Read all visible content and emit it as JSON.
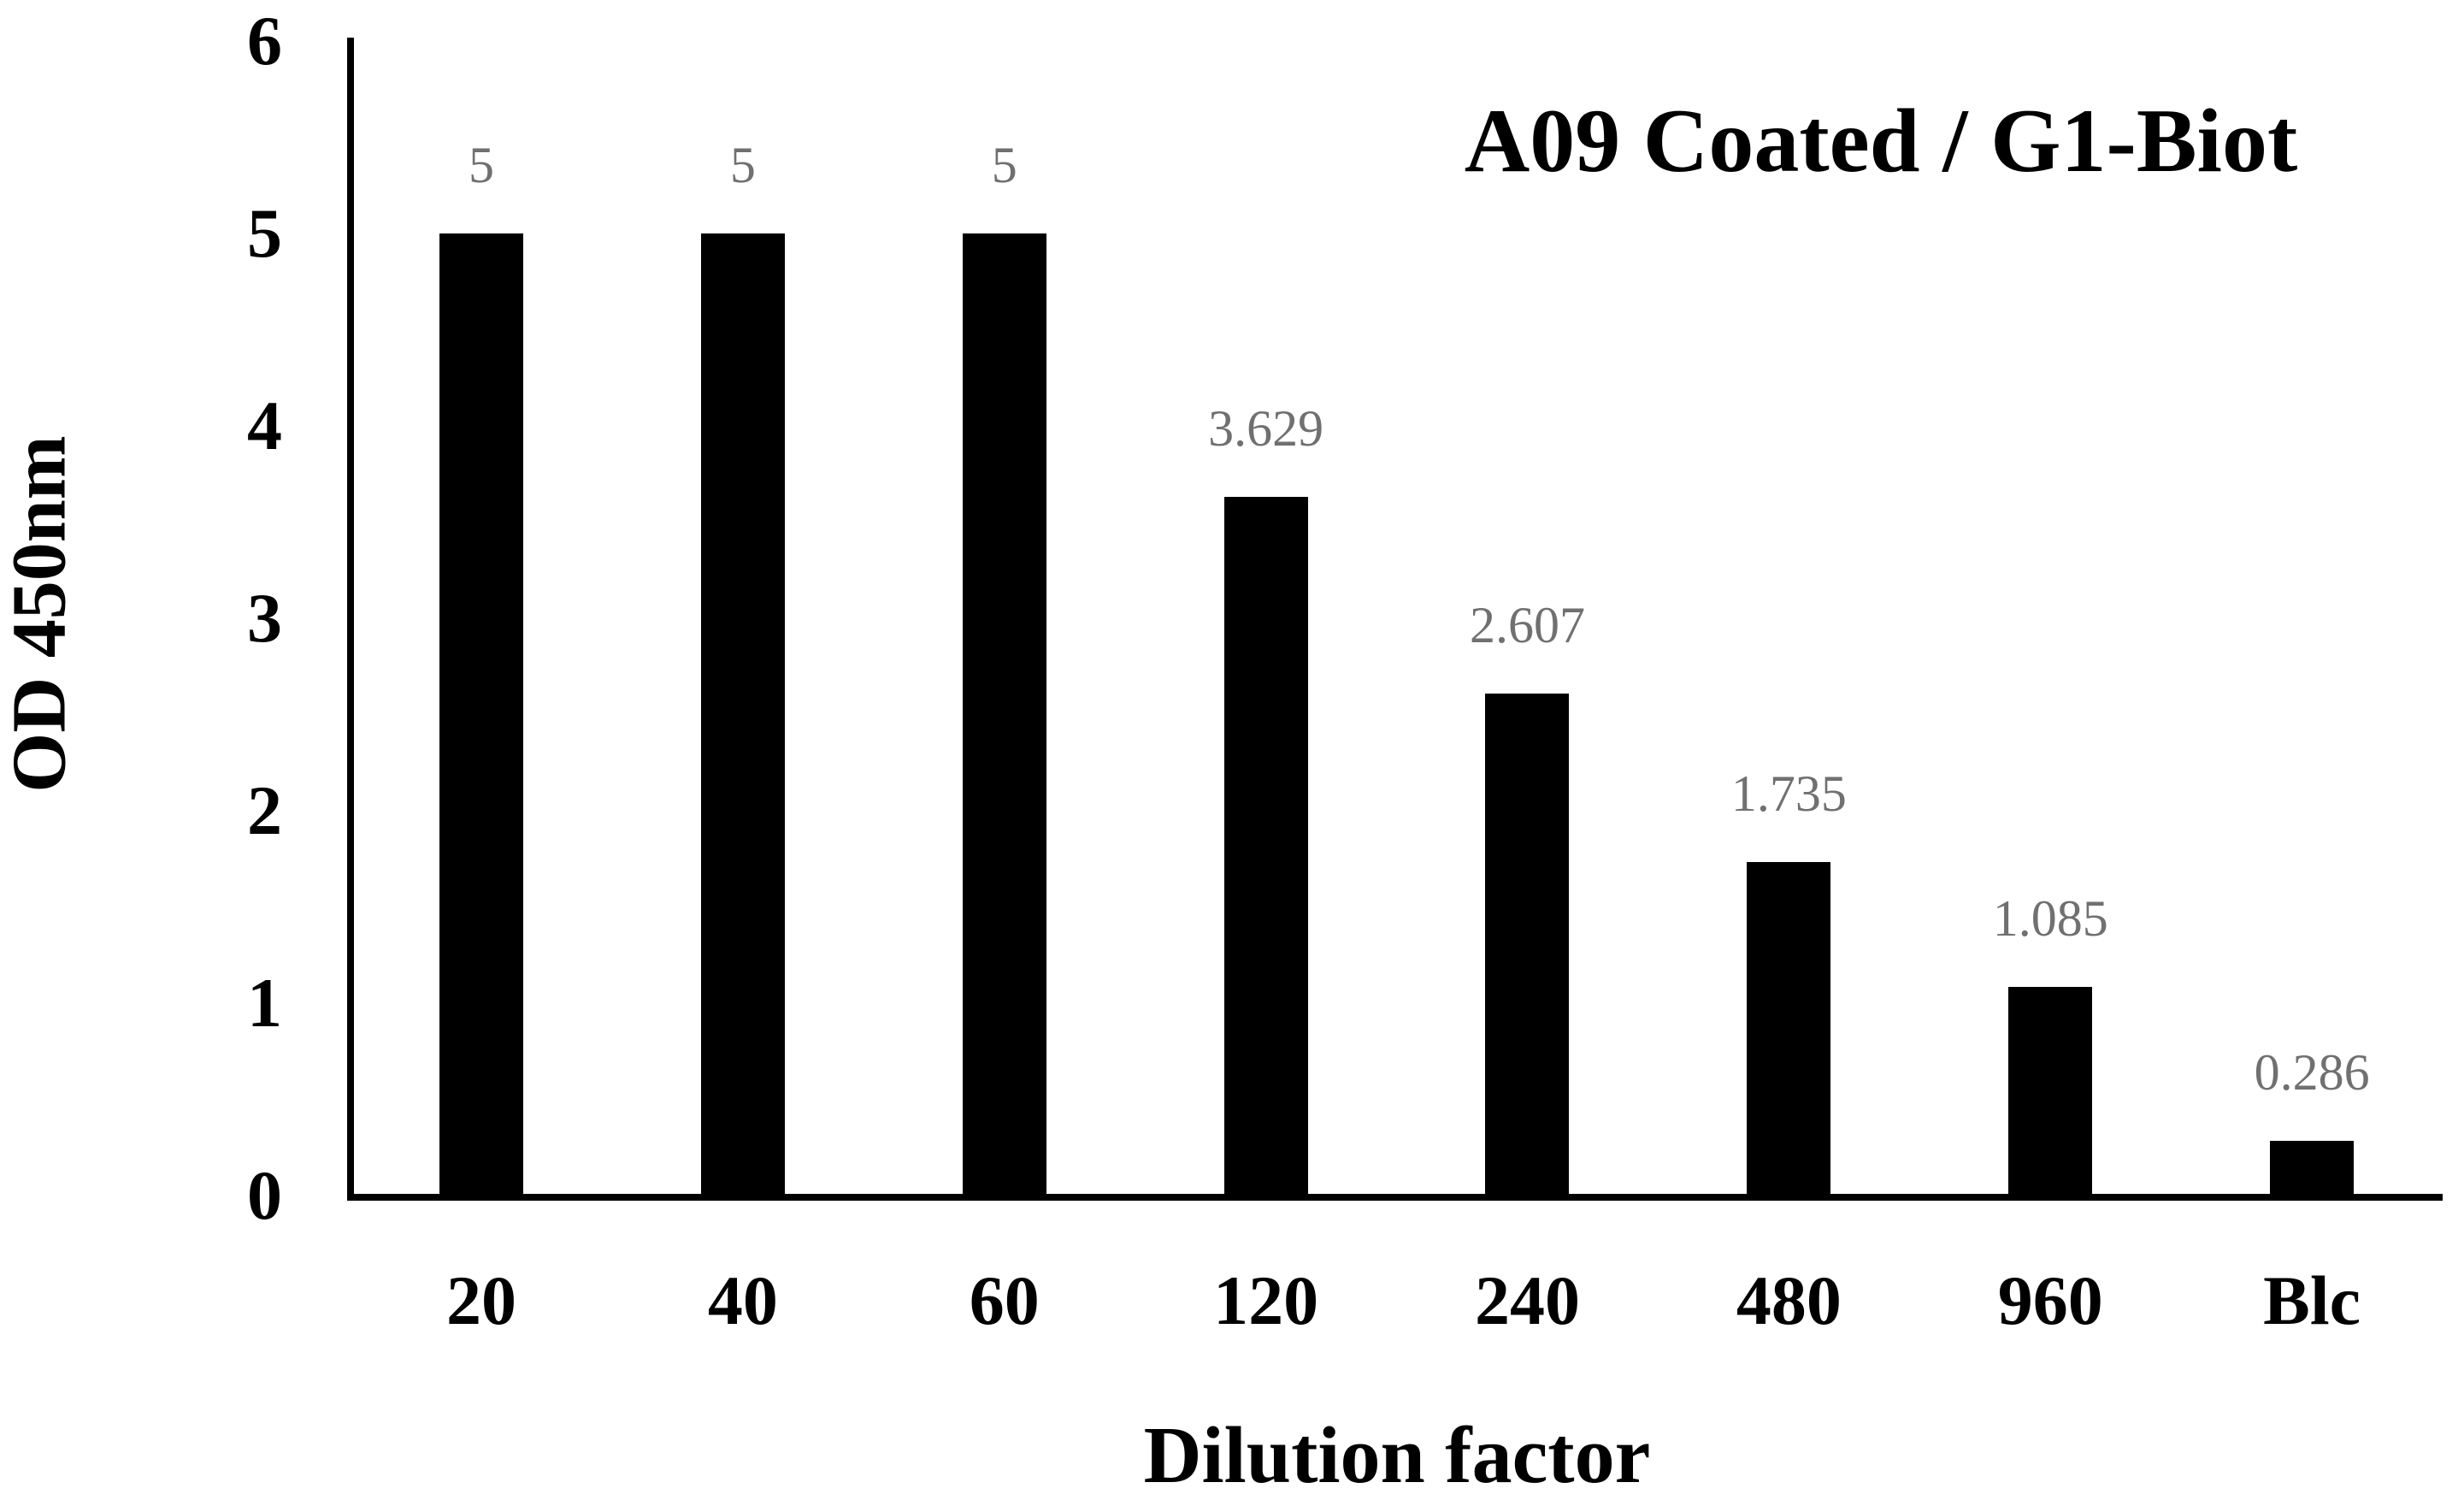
{
  "chart_data": {
    "type": "bar",
    "title": "A09 Coated / G1-Biot",
    "xlabel": "Dilution factor",
    "ylabel": "OD 450nm",
    "categories": [
      "20",
      "40",
      "60",
      "120",
      "240",
      "480",
      "960",
      "Blc"
    ],
    "values": [
      5,
      5,
      5,
      3.629,
      2.607,
      1.735,
      1.085,
      0.286
    ],
    "value_labels": [
      "5",
      "5",
      "5",
      "3.629",
      "2.607",
      "1.735",
      "1.085",
      "0.286"
    ],
    "yticks": [
      0,
      1,
      2,
      3,
      4,
      5,
      6
    ],
    "ylim": [
      0,
      6
    ],
    "grid": false,
    "legend": false,
    "bar_color": "#000000",
    "value_label_color": "#707070",
    "axis_color": "#000000",
    "background_color": "#ffffff"
  }
}
